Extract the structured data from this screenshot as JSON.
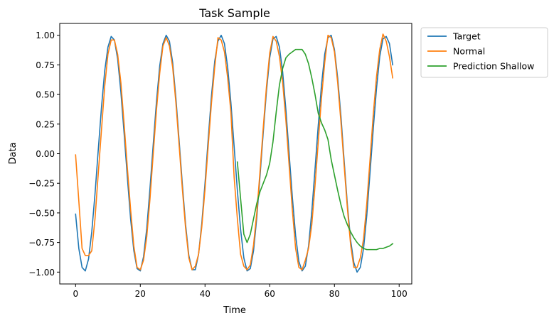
{
  "chart_data": {
    "type": "line",
    "title": "Task Sample",
    "xlabel": "Time",
    "ylabel": "Data",
    "xlim": [
      -4.9,
      103.9
    ],
    "ylim": [
      -1.1,
      1.1
    ],
    "xticks": [
      0,
      20,
      40,
      60,
      80,
      100
    ],
    "xtick_labels": [
      "0",
      "20",
      "40",
      "60",
      "80",
      "100"
    ],
    "yticks": [
      -1.0,
      -0.75,
      -0.5,
      -0.25,
      0.0,
      0.25,
      0.5,
      0.75,
      1.0
    ],
    "ytick_labels": [
      "−1.00",
      "−0.75",
      "−0.50",
      "−0.25",
      "0.00",
      "0.25",
      "0.50",
      "0.75",
      "1.00"
    ],
    "grid": false,
    "legend_position": "outside-upper-right",
    "series": [
      {
        "name": "Target",
        "color": "#1f77b4",
        "x": [
          0,
          1,
          2,
          3,
          4,
          5,
          6,
          7,
          8,
          9,
          10,
          11,
          12,
          13,
          14,
          15,
          16,
          17,
          18,
          19,
          20,
          21,
          22,
          23,
          24,
          25,
          26,
          27,
          28,
          29,
          30,
          31,
          32,
          33,
          34,
          35,
          36,
          37,
          38,
          39,
          40,
          41,
          42,
          43,
          44,
          45,
          46,
          47,
          48,
          49,
          50,
          51,
          52,
          53,
          54,
          55,
          56,
          57,
          58,
          59,
          60,
          61,
          62,
          63,
          64,
          65,
          66,
          67,
          68,
          69,
          70,
          71,
          72,
          73,
          74,
          75,
          76,
          77,
          78,
          79,
          80,
          81,
          82,
          83,
          84,
          85,
          86,
          87,
          88,
          89,
          90,
          91,
          92,
          93,
          94,
          95,
          96,
          97,
          98
        ],
        "y": [
          -0.51,
          -0.8,
          -0.96,
          -0.99,
          -0.89,
          -0.66,
          -0.34,
          0.03,
          0.39,
          0.7,
          0.9,
          0.99,
          0.96,
          0.8,
          0.52,
          0.17,
          -0.2,
          -0.55,
          -0.82,
          -0.97,
          -0.99,
          -0.87,
          -0.63,
          -0.29,
          0.08,
          0.44,
          0.74,
          0.93,
          1.0,
          0.95,
          0.77,
          0.47,
          0.11,
          -0.26,
          -0.6,
          -0.86,
          -0.98,
          -0.98,
          -0.85,
          -0.59,
          -0.25,
          0.13,
          0.49,
          0.78,
          0.95,
          1.0,
          0.93,
          0.73,
          0.43,
          0.06,
          -0.31,
          -0.64,
          -0.88,
          -0.99,
          -0.97,
          -0.82,
          -0.54,
          -0.19,
          0.18,
          0.53,
          0.81,
          0.97,
          0.99,
          0.9,
          0.69,
          0.37,
          0.0,
          -0.37,
          -0.69,
          -0.91,
          -0.99,
          -0.95,
          -0.78,
          -0.49,
          -0.13,
          0.24,
          0.58,
          0.84,
          0.98,
          1.0,
          0.88,
          0.64,
          0.32,
          -0.06,
          -0.43,
          -0.73,
          -0.92,
          -1.0,
          -0.96,
          -0.8,
          -0.52,
          -0.16,
          0.21,
          0.55,
          0.82,
          0.97,
          0.99,
          0.93,
          0.75
        ]
      },
      {
        "name": "Normal",
        "color": "#ff7f0e",
        "x": [
          0,
          1,
          2,
          3,
          4,
          5,
          6,
          7,
          8,
          9,
          10,
          11,
          12,
          13,
          14,
          15,
          16,
          17,
          18,
          19,
          20,
          21,
          22,
          23,
          24,
          25,
          26,
          27,
          28,
          29,
          30,
          31,
          32,
          33,
          34,
          35,
          36,
          37,
          38,
          39,
          40,
          41,
          42,
          43,
          44,
          45,
          46,
          47,
          48,
          49,
          50,
          51,
          52,
          53,
          54,
          55,
          56,
          57,
          58,
          59,
          60,
          61,
          62,
          63,
          64,
          65,
          66,
          67,
          68,
          69,
          70,
          71,
          72,
          73,
          74,
          75,
          76,
          77,
          78,
          79,
          80,
          81,
          82,
          83,
          84,
          85,
          86,
          87,
          88,
          89,
          90,
          91,
          92,
          93,
          94,
          95,
          96,
          97,
          98
        ],
        "y": [
          -0.01,
          -0.4,
          -0.8,
          -0.86,
          -0.86,
          -0.82,
          -0.55,
          -0.17,
          0.2,
          0.57,
          0.84,
          0.96,
          0.96,
          0.84,
          0.6,
          0.25,
          -0.12,
          -0.47,
          -0.78,
          -0.96,
          -0.98,
          -0.9,
          -0.7,
          -0.38,
          0.0,
          0.37,
          0.68,
          0.91,
          0.98,
          0.91,
          0.73,
          0.43,
          0.07,
          -0.3,
          -0.63,
          -0.88,
          -0.98,
          -0.95,
          -0.85,
          -0.62,
          -0.3,
          0.07,
          0.43,
          0.73,
          0.98,
          0.96,
          0.86,
          0.64,
          0.35,
          -0.2,
          -0.55,
          -0.85,
          -0.95,
          -0.98,
          -0.94,
          -0.77,
          -0.5,
          -0.15,
          0.22,
          0.57,
          0.85,
          0.99,
          0.95,
          0.82,
          0.6,
          0.28,
          -0.1,
          -0.48,
          -0.8,
          -0.96,
          -0.98,
          -0.9,
          -0.8,
          -0.6,
          -0.27,
          0.1,
          0.47,
          0.77,
          1.0,
          0.98,
          0.86,
          0.6,
          0.27,
          -0.1,
          -0.46,
          -0.77,
          -0.96,
          -0.96,
          -0.88,
          -0.72,
          -0.42,
          -0.05,
          0.33,
          0.65,
          0.88,
          1.01,
          0.95,
          0.82,
          0.64
        ]
      },
      {
        "name": "Prediction Shallow",
        "color": "#2ca02c",
        "x": [
          50,
          51,
          52,
          53,
          54,
          55,
          56,
          57,
          58,
          59,
          60,
          61,
          62,
          63,
          64,
          65,
          66,
          67,
          68,
          69,
          70,
          71,
          72,
          73,
          74,
          75,
          76,
          77,
          78,
          79,
          80,
          81,
          82,
          83,
          84,
          85,
          86,
          87,
          88,
          89,
          90,
          91,
          92,
          93,
          94,
          95,
          96,
          97,
          98
        ],
        "y": [
          -0.07,
          -0.38,
          -0.68,
          -0.75,
          -0.68,
          -0.55,
          -0.42,
          -0.32,
          -0.25,
          -0.18,
          -0.08,
          0.1,
          0.35,
          0.58,
          0.72,
          0.81,
          0.84,
          0.86,
          0.88,
          0.88,
          0.88,
          0.84,
          0.76,
          0.64,
          0.5,
          0.34,
          0.26,
          0.2,
          0.12,
          -0.05,
          -0.18,
          -0.31,
          -0.43,
          -0.53,
          -0.6,
          -0.66,
          -0.71,
          -0.75,
          -0.78,
          -0.8,
          -0.81,
          -0.81,
          -0.81,
          -0.81,
          -0.8,
          -0.8,
          -0.79,
          -0.78,
          -0.76
        ]
      }
    ]
  }
}
